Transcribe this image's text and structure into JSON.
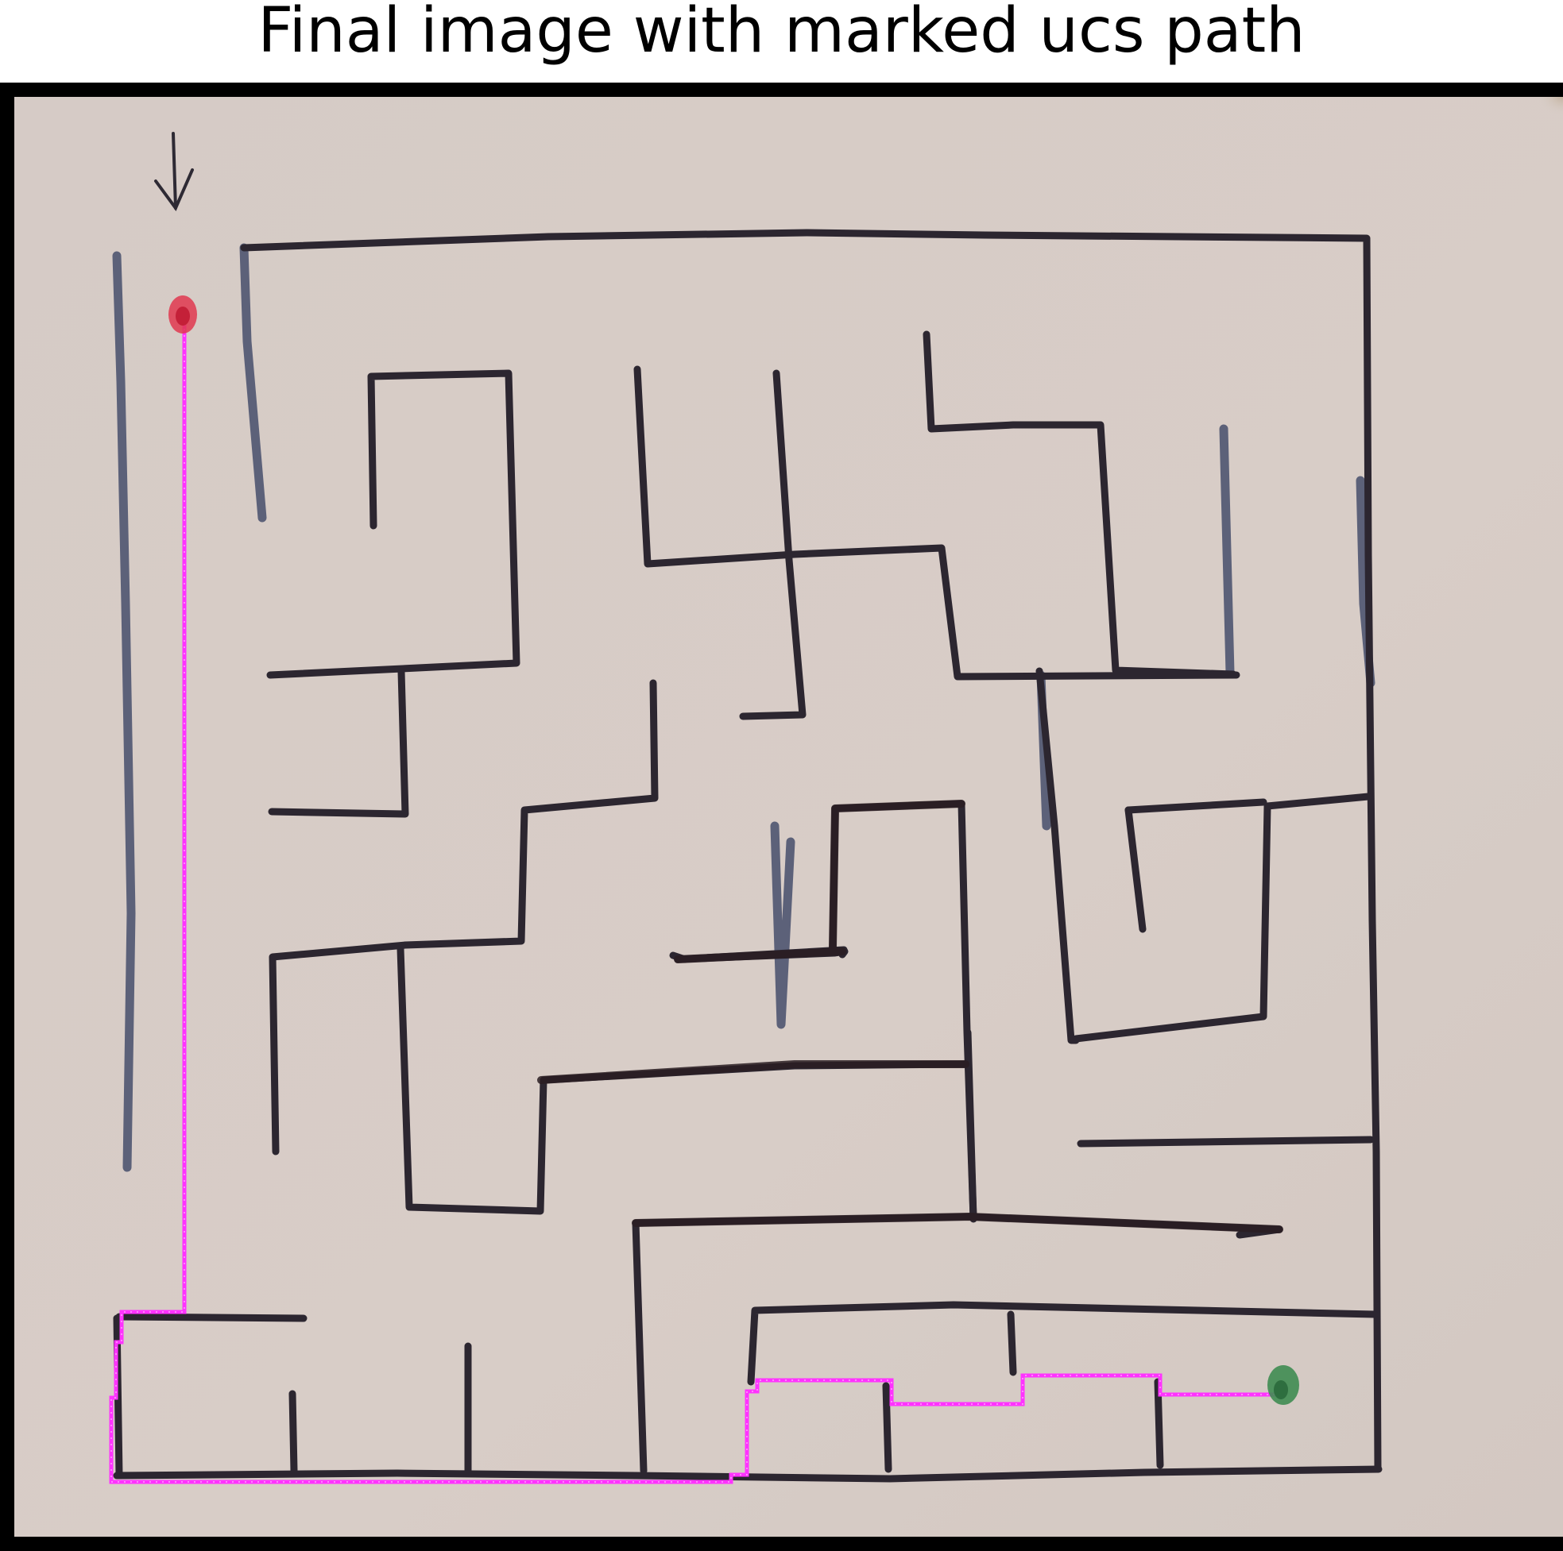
{
  "figure": {
    "title": "Final image with marked ucs path"
  },
  "colors": {
    "frame": "#000000",
    "paper": "#d8ccc6",
    "ink_wall": "#2e2a34",
    "ink_wall_dark": "#2a1e22",
    "ink_pencil": "#4a4f66",
    "path": "#ff33ff",
    "start_marker": "#e0384f",
    "goal_marker": "#3f8c52"
  },
  "legend": {
    "start": "red dot",
    "goal": "green dot",
    "path": "magenta ucs path"
  }
}
